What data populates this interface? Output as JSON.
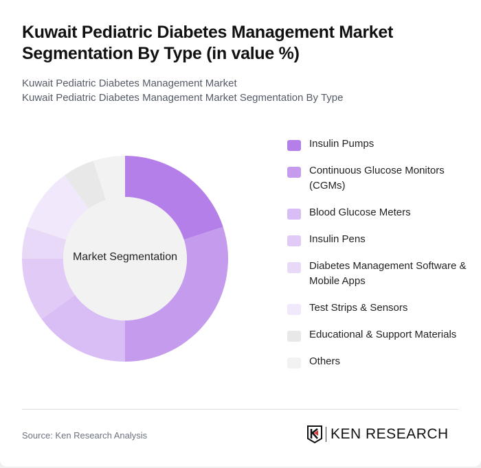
{
  "header": {
    "title": "Kuwait Pediatric Diabetes Management Market Segmentation By Type (in value %)",
    "subtitle_1": "Kuwait Pediatric Diabetes Management Market",
    "subtitle_2": "Kuwait Pediatric Diabetes Management Market Segmentation By Type"
  },
  "chart": {
    "center_label": "Market Segmentation"
  },
  "legend": {
    "items": [
      {
        "label": "Insulin Pumps",
        "color": "#b57fe9"
      },
      {
        "label": "Continuous Glucose Monitors (CGMs)",
        "color": "#c49bed"
      },
      {
        "label": "Blood Glucose Meters",
        "color": "#d9bef5"
      },
      {
        "label": "Insulin Pens",
        "color": "#e1cbf6"
      },
      {
        "label": "Diabetes Management Software & Mobile Apps",
        "color": "#e8d9f8"
      },
      {
        "label": "Test Strips & Sensors",
        "color": "#f1e9fb"
      },
      {
        "label": "Educational & Support Materials",
        "color": "#e8e8e8"
      },
      {
        "label": "Others",
        "color": "#f2f2f2"
      }
    ]
  },
  "footer": {
    "source": "Source: Ken Research Analysis",
    "logo_text": "KEN RESEARCH"
  },
  "chart_data": {
    "type": "pie",
    "title": "Kuwait Pediatric Diabetes Management Market Segmentation By Type (in value %)",
    "subtitle": "Market Segmentation",
    "categories": [
      "Insulin Pumps",
      "Continuous Glucose Monitors (CGMs)",
      "Blood Glucose Meters",
      "Insulin Pens",
      "Diabetes Management Software & Mobile Apps",
      "Test Strips & Sensors",
      "Educational & Support Materials",
      "Others"
    ],
    "values": [
      20,
      30,
      15,
      10,
      5,
      10,
      5,
      5
    ],
    "colors": [
      "#b57fe9",
      "#c49bed",
      "#d9bef5",
      "#e1cbf6",
      "#e8d9f8",
      "#f1e9fb",
      "#e8e8e8",
      "#f2f2f2"
    ],
    "donut": true,
    "legend_position": "right",
    "units": "%"
  }
}
